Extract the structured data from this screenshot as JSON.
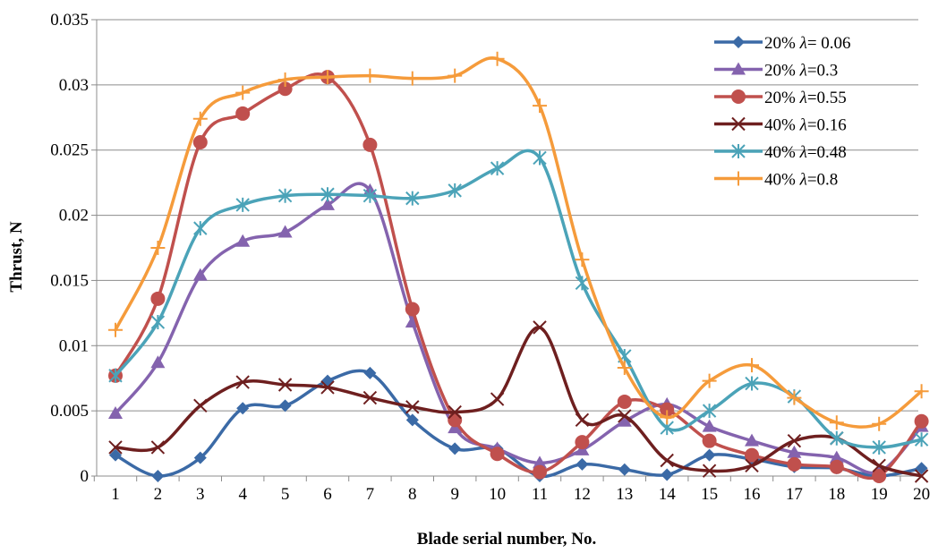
{
  "chart_data": {
    "type": "line",
    "xlabel": "Blade serial number, No.",
    "ylabel": "Thrust, N",
    "ylim": [
      0,
      0.035
    ],
    "yticks": [
      "0",
      "0.005",
      "0.01",
      "0.015",
      "0.02",
      "0.025",
      "0.03",
      "0.035"
    ],
    "yticks_values": [
      0,
      0.005,
      0.01,
      0.015,
      0.02,
      0.025,
      0.03,
      0.035
    ],
    "x": [
      1,
      2,
      3,
      4,
      5,
      6,
      7,
      8,
      9,
      10,
      11,
      12,
      13,
      14,
      15,
      16,
      17,
      18,
      19,
      20
    ],
    "xticks": [
      "1",
      "2",
      "3",
      "4",
      "5",
      "6",
      "7",
      "8",
      "9",
      "10",
      "11",
      "12",
      "13",
      "14",
      "15",
      "16",
      "17",
      "18",
      "19",
      "20"
    ],
    "grid": "horizontal",
    "legend_position": "top-right",
    "series": [
      {
        "name": "20% λ= 0.06",
        "label_prefix": "20% ",
        "label_lambda": "λ",
        "label_suffix": "= 0.06",
        "color": "#3B6AA6",
        "marker": "diamond",
        "values": [
          0.0016,
          0.0,
          0.0014,
          0.0052,
          0.0054,
          0.0073,
          0.0079,
          0.0043,
          0.0021,
          0.0021,
          0.0,
          0.0009,
          0.0005,
          0.0001,
          0.0016,
          0.0013,
          0.0007,
          0.0006,
          0.0,
          0.0006
        ]
      },
      {
        "name": "20% λ=0.3",
        "label_prefix": "20% ",
        "label_lambda": "λ",
        "label_suffix": "=0.3",
        "color": "#8463AE",
        "marker": "triangle",
        "values": [
          0.0048,
          0.0087,
          0.0154,
          0.018,
          0.0187,
          0.0208,
          0.0219,
          0.0118,
          0.0037,
          0.0021,
          0.001,
          0.002,
          0.0042,
          0.0055,
          0.0038,
          0.0027,
          0.0018,
          0.0014,
          0.0003,
          0.0038
        ]
      },
      {
        "name": "20% λ=0.55",
        "label_prefix": "20% ",
        "label_lambda": "λ",
        "label_suffix": "=0.55",
        "color": "#C0504D",
        "marker": "circle",
        "values": [
          0.0077,
          0.0136,
          0.0256,
          0.0278,
          0.0297,
          0.0306,
          0.0254,
          0.0128,
          0.0043,
          0.0017,
          0.0003,
          0.0026,
          0.0057,
          0.0051,
          0.0027,
          0.0016,
          0.0009,
          0.0007,
          0.0,
          0.0042
        ]
      },
      {
        "name": "40% λ=0.16",
        "label_prefix": "40% ",
        "label_lambda": "λ",
        "label_suffix": "=0.16",
        "color": "#6E1F1F",
        "marker": "x",
        "values": [
          0.0022,
          0.0022,
          0.0054,
          0.0072,
          0.007,
          0.0068,
          0.006,
          0.0053,
          0.0049,
          0.0059,
          0.0114,
          0.0043,
          0.0046,
          0.0012,
          0.0004,
          0.0008,
          0.0027,
          0.0029,
          0.0008,
          0.0
        ]
      },
      {
        "name": "40% λ=0.48",
        "label_prefix": "40% ",
        "label_lambda": "λ",
        "label_suffix": "=0.48",
        "color": "#4BA3B8",
        "marker": "asterisk",
        "values": [
          0.0077,
          0.0118,
          0.019,
          0.0208,
          0.0215,
          0.0216,
          0.0215,
          0.0213,
          0.0219,
          0.0236,
          0.0244,
          0.0148,
          0.0092,
          0.0037,
          0.005,
          0.0071,
          0.0061,
          0.0029,
          0.0022,
          0.0028
        ]
      },
      {
        "name": "40% λ=0.8",
        "label_prefix": "40% ",
        "label_lambda": "λ",
        "label_suffix": "=0.8",
        "color": "#F59B3B",
        "marker": "plus",
        "values": [
          0.0112,
          0.0175,
          0.0274,
          0.0294,
          0.0304,
          0.0306,
          0.0307,
          0.0305,
          0.0307,
          0.032,
          0.0284,
          0.0166,
          0.0083,
          0.0045,
          0.0073,
          0.0085,
          0.006,
          0.0041,
          0.004,
          0.0065
        ]
      }
    ]
  }
}
